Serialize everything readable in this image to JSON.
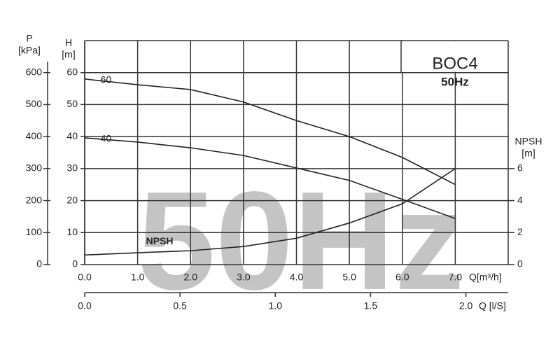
{
  "chart_data": {
    "type": "line",
    "title": "BOC4",
    "subtitle": "50Hz",
    "watermark": "50Hz",
    "x_label": "Q[m³/h]",
    "x2_label": "Q [l/S]",
    "y_label": [
      "H",
      "[m]"
    ],
    "p_label": [
      "P",
      "[kPa]"
    ],
    "y2_label": [
      "NPSH",
      "[m]"
    ],
    "x": [
      0,
      1,
      2,
      3,
      4,
      5,
      6,
      7
    ],
    "series": [
      {
        "name": "-60",
        "color": "#222222",
        "values": [
          58,
          56.2,
          54.7,
          50.8,
          45,
          40,
          33.5,
          25
        ]
      },
      {
        "name": "-40",
        "color": "#222222",
        "values": [
          39.6,
          38.3,
          36.5,
          34.1,
          30.2,
          26.3,
          20.4,
          14.4
        ]
      },
      {
        "name": "NPSH",
        "color": "#222222",
        "axis": "y2",
        "values": [
          0.6,
          0.74,
          0.87,
          1.13,
          1.65,
          2.6,
          3.8,
          6.0
        ]
      }
    ],
    "xlim": [
      0,
      8
    ],
    "xticks": [
      {
        "value": 0,
        "label": "0.0"
      },
      {
        "value": 1,
        "label": "1.0"
      },
      {
        "value": 2,
        "label": "2.0"
      },
      {
        "value": 3,
        "label": "3.0"
      },
      {
        "value": 4,
        "label": "4.0"
      },
      {
        "value": 5,
        "label": "5.0"
      },
      {
        "value": 6,
        "label": "6.0"
      },
      {
        "value": 7,
        "label": "7.0"
      }
    ],
    "x2lim": [
      0,
      2.222
    ],
    "x2ticks": [
      {
        "value": 0,
        "label": "0.0"
      },
      {
        "value": 0.5,
        "label": "0.5"
      },
      {
        "value": 1,
        "label": "1.0"
      },
      {
        "value": 1.5,
        "label": "1.5"
      },
      {
        "value": 2,
        "label": "2.0"
      }
    ],
    "ylim": [
      0,
      70
    ],
    "yticks": [
      0,
      10,
      20,
      30,
      40,
      50,
      60
    ],
    "plim": [
      0,
      700
    ],
    "pticks": [
      0,
      100,
      200,
      300,
      400,
      500,
      600
    ],
    "y2lim": [
      0,
      14
    ],
    "y2ticks": [
      0,
      2,
      4,
      6
    ],
    "grid": true
  }
}
